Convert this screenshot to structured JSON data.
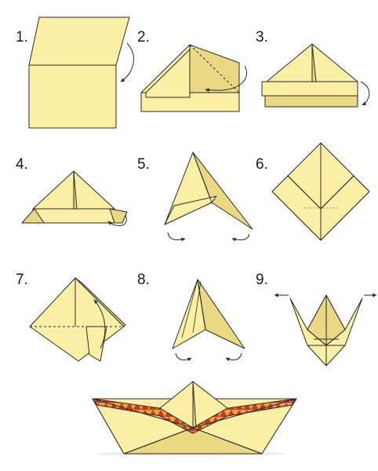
{
  "steps": [
    {
      "id": 1,
      "label": "1."
    },
    {
      "id": 2,
      "label": "2."
    },
    {
      "id": 3,
      "label": "3."
    },
    {
      "id": 4,
      "label": "4."
    },
    {
      "id": 5,
      "label": "5."
    },
    {
      "id": 6,
      "label": "6."
    },
    {
      "id": 7,
      "label": "7."
    },
    {
      "id": 8,
      "label": "8."
    },
    {
      "id": 9,
      "label": "9."
    }
  ],
  "colors": {
    "paper": "#fbefa6",
    "paper_shade": "#ead882",
    "paper_dark": "#d9c46c",
    "outline": "#2b2b2b",
    "trim_red": "#c9352b",
    "trim_gold": "#e6a43a",
    "water_shadow": "#eeeeee"
  },
  "final_result_icon": "paper-boat-icon"
}
